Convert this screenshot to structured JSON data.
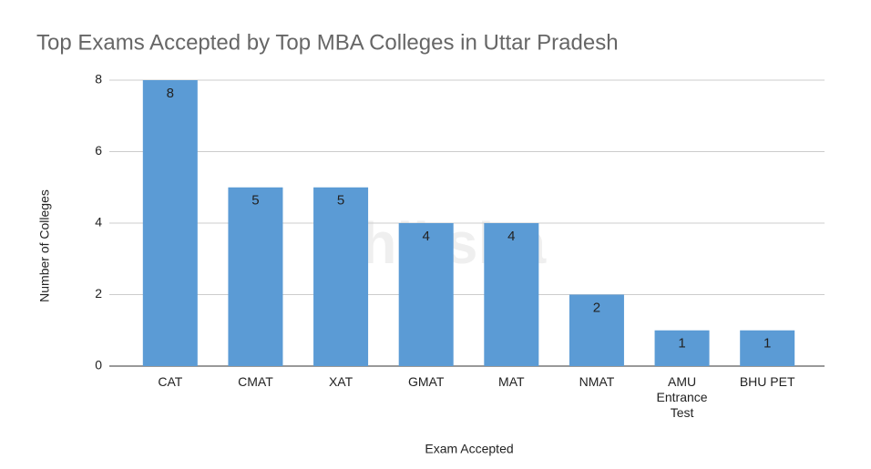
{
  "chart_data": {
    "type": "bar",
    "title": "Top Exams Accepted by Top MBA Colleges in Uttar Pradesh",
    "x_label": "Exam Accepted",
    "y_label": "Number of Colleges",
    "watermark": "shiksha",
    "categories": [
      "CAT",
      "CMAT",
      "XAT",
      "GMAT",
      "MAT",
      "NMAT",
      "AMU Entrance Test",
      "BHU PET"
    ],
    "values": [
      8,
      5,
      5,
      4,
      4,
      2,
      1,
      1
    ],
    "color": "#5b9bd5",
    "ylim": [
      0,
      8
    ],
    "yticks": [
      0,
      2,
      4,
      6,
      8
    ],
    "grid": true
  }
}
